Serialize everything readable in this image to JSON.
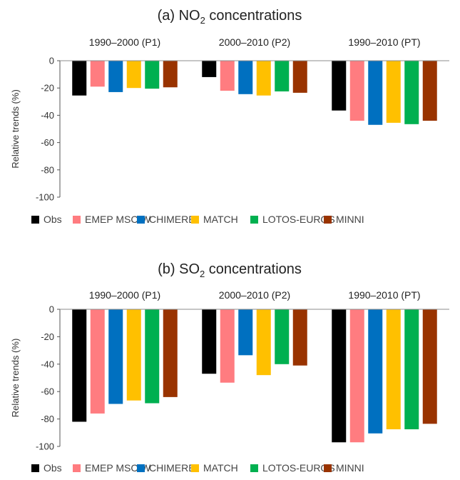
{
  "chart_data": [
    {
      "type": "bar",
      "title_main": "(a) NO",
      "title_sub": "2",
      "title_rest": " concentrations",
      "categories": [
        "1990–2000 (P1)",
        "2000–2010 (P2)",
        "1990–2010 (PT)"
      ],
      "ylabel": "Relative trends (%)",
      "ylim": [
        -100,
        0
      ],
      "yticks": [
        "0",
        "-20",
        "-40",
        "-60",
        "-80",
        "-100"
      ],
      "series": [
        {
          "name": "Obs",
          "color": "#000000",
          "values": [
            -25.5,
            -12,
            -36.5
          ]
        },
        {
          "name": "EMEP MSC-W",
          "color": "#ff7c80",
          "values": [
            -19,
            -22,
            -44
          ]
        },
        {
          "name": "CHIMERE",
          "color": "#0070c0",
          "values": [
            -23,
            -24.5,
            -47
          ]
        },
        {
          "name": "MATCH",
          "color": "#ffc000",
          "values": [
            -20,
            -25.5,
            -45.5
          ]
        },
        {
          "name": "LOTOS-EUROS",
          "color": "#00b050",
          "values": [
            -20.5,
            -22.5,
            -46.5
          ]
        },
        {
          "name": "MINNI",
          "color": "#993300",
          "values": [
            -19.5,
            -23.5,
            -44
          ]
        }
      ]
    },
    {
      "type": "bar",
      "title_main": "(b) SO",
      "title_sub": "2",
      "title_rest": "   concentrations",
      "categories": [
        "1990–2000 (P1)",
        "2000–2010 (P2)",
        "1990–2010 (PT)"
      ],
      "ylabel": "Relative trends (%)",
      "ylim": [
        -100,
        0
      ],
      "yticks": [
        "0",
        "-20",
        "-40",
        "-60",
        "-80",
        "-100"
      ],
      "series": [
        {
          "name": "Obs",
          "color": "#000000",
          "values": [
            -82,
            -47,
            -97
          ]
        },
        {
          "name": "EMEP MSC-W",
          "color": "#ff7c80",
          "values": [
            -76,
            -53.5,
            -97
          ]
        },
        {
          "name": "CHIMERE",
          "color": "#0070c0",
          "values": [
            -69,
            -33.5,
            -90.5
          ]
        },
        {
          "name": "MATCH",
          "color": "#ffc000",
          "values": [
            -66.5,
            -48,
            -87.5
          ]
        },
        {
          "name": "LOTOS-EUROS",
          "color": "#00b050",
          "values": [
            -68.5,
            -40,
            -87.5
          ]
        },
        {
          "name": "MINNI",
          "color": "#993300",
          "values": [
            -64,
            -41,
            -83.5
          ]
        }
      ]
    }
  ]
}
